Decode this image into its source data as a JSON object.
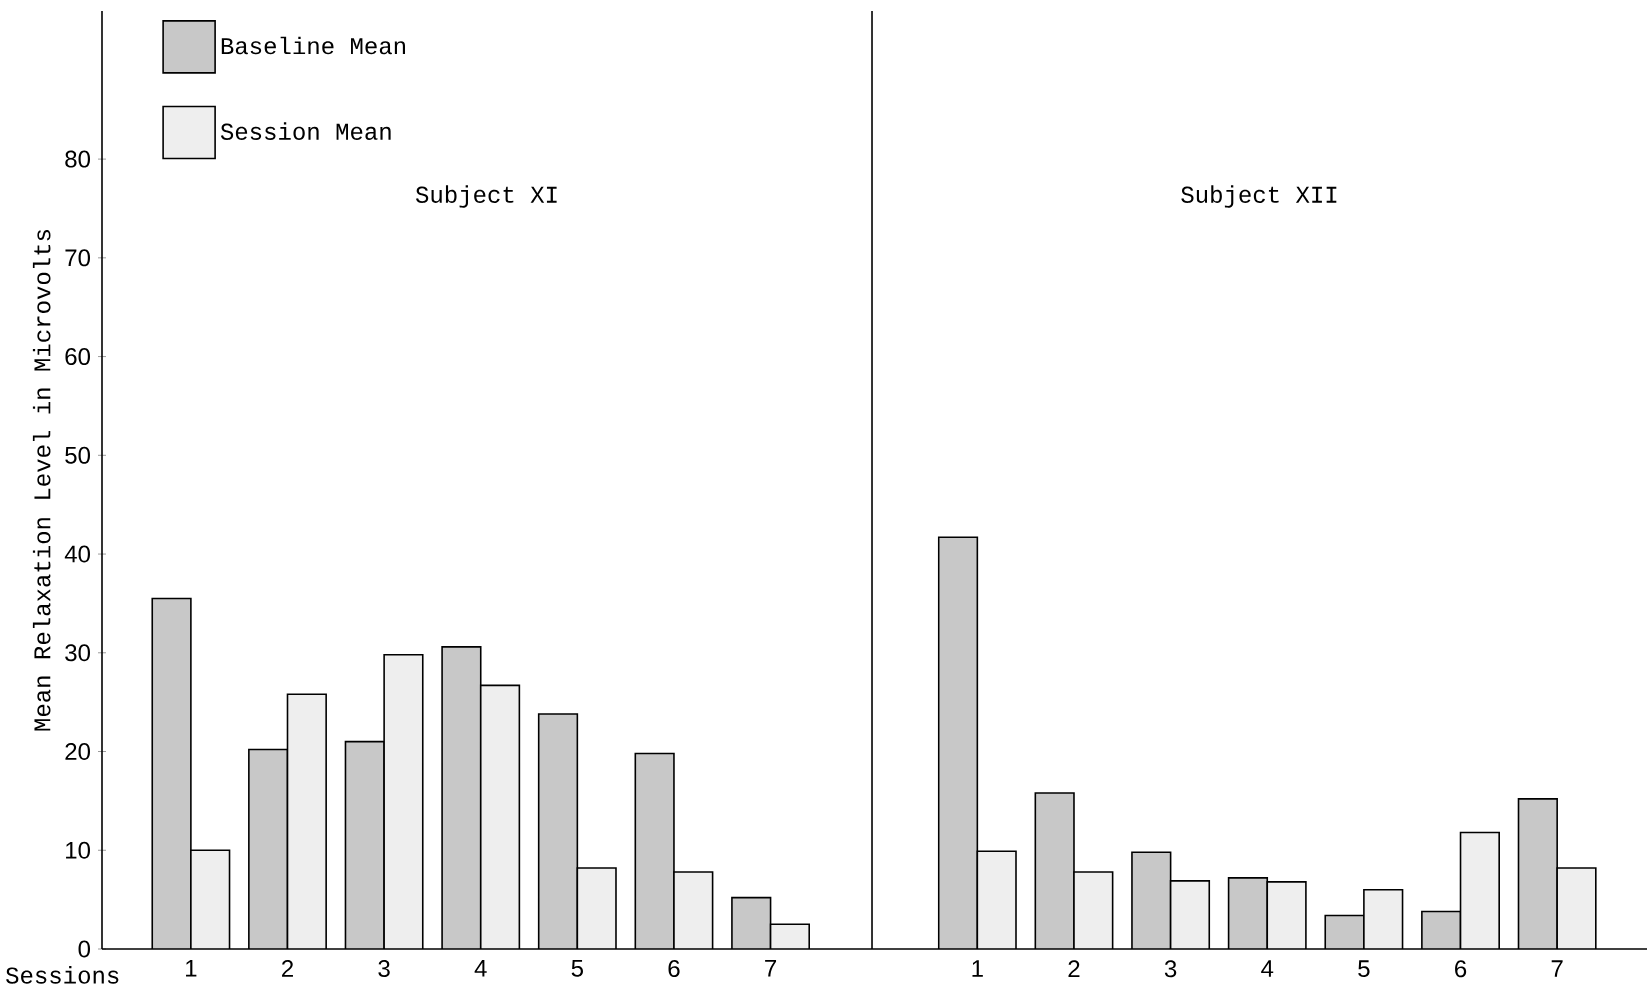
{
  "chart_data": [
    {
      "type": "bar",
      "title": "Subject XI",
      "xlabel": "Sessions",
      "ylabel": "Mean Relaxation Level in Microvolts",
      "categories": [
        "1",
        "2",
        "3",
        "4",
        "5",
        "6",
        "7"
      ],
      "series": [
        {
          "name": "Baseline Mean",
          "color": "#c8c8c8",
          "values": [
            35.5,
            20.2,
            21,
            30.6,
            23.8,
            19.8,
            5.2
          ]
        },
        {
          "name": "Session Mean",
          "color": "#eeeeee",
          "values": [
            10,
            25.8,
            29.8,
            26.7,
            8.2,
            7.8,
            2.5
          ]
        }
      ],
      "ylim": [
        0,
        95
      ],
      "yticks": [
        0,
        10,
        20,
        30,
        40,
        50,
        60,
        70,
        80
      ],
      "legend": "top left"
    },
    {
      "type": "bar",
      "title": "Subject XII",
      "categories": [
        "1",
        "2",
        "3",
        "4",
        "5",
        "6",
        "7"
      ],
      "series": [
        {
          "color": "#c8c8c8",
          "values": [
            41.7,
            15.8,
            9.8,
            7.2,
            3.4,
            3.8,
            15.2
          ]
        },
        {
          "color": "#eeeeee",
          "values": [
            9.9,
            7.8,
            6.9,
            6.8,
            6,
            11.8,
            8.2
          ]
        }
      ],
      "ylim": [
        0,
        95
      ],
      "yticks": [
        0,
        10,
        20,
        30,
        40,
        50,
        60,
        70,
        80
      ],
      "tick_labels": "x"
    }
  ]
}
